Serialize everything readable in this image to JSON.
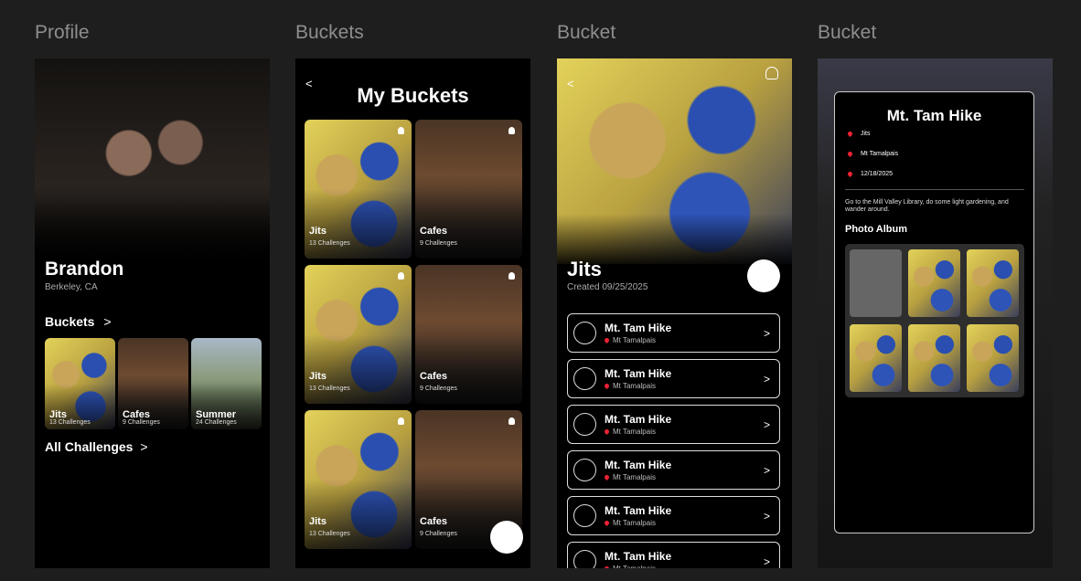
{
  "profile": {
    "frame_label": "Profile",
    "name": "Brandon",
    "location": "Berkeley, CA",
    "buckets_link": "Buckets",
    "buckets_arrow": ">",
    "buckets": [
      {
        "name": "Jits",
        "challenges": "13 Challenges"
      },
      {
        "name": "Cafes",
        "challenges": "9 Challenges"
      },
      {
        "name": "Summer",
        "challenges": "24 Challenges"
      }
    ],
    "all_challenges": "All Challenges",
    "all_arrow": ">"
  },
  "buckets_screen": {
    "frame_label": "Buckets",
    "back": "<",
    "title": "My Buckets",
    "cards": [
      {
        "name": "Jits",
        "challenges": "13 Challenges"
      },
      {
        "name": "Cafes",
        "challenges": "9 Challenges"
      },
      {
        "name": "Jits",
        "challenges": "13 Challenges"
      },
      {
        "name": "Cafes",
        "challenges": "9 Challenges"
      },
      {
        "name": "Jits",
        "challenges": "13 Challenges"
      },
      {
        "name": "Cafes",
        "challenges": "9 Challenges"
      }
    ]
  },
  "bucket_screen": {
    "frame_label": "Bucket",
    "back": "<",
    "title": "Jits",
    "created": "Created 09/25/2025",
    "arrow": ">",
    "items": [
      {
        "title": "Mt. Tam Hike",
        "location": "Mt Tamalpais"
      },
      {
        "title": "Mt. Tam Hike",
        "location": "Mt Tamalpais"
      },
      {
        "title": "Mt. Tam Hike",
        "location": "Mt Tamalpais"
      },
      {
        "title": "Mt. Tam Hike",
        "location": "Mt Tamalpais"
      },
      {
        "title": "Mt. Tam Hike",
        "location": "Mt Tamalpais"
      },
      {
        "title": "Mt. Tam Hike",
        "location": "Mt Tamalpais"
      }
    ]
  },
  "detail_screen": {
    "frame_label": "Bucket",
    "title": "Mt. Tam Hike",
    "details": [
      "Jits",
      "Mt Tamalpais",
      "12/18/2025"
    ],
    "description": "Go to the Mill Valley Library, do some light gardening, and wander around.",
    "album_title": "Photo Album"
  }
}
